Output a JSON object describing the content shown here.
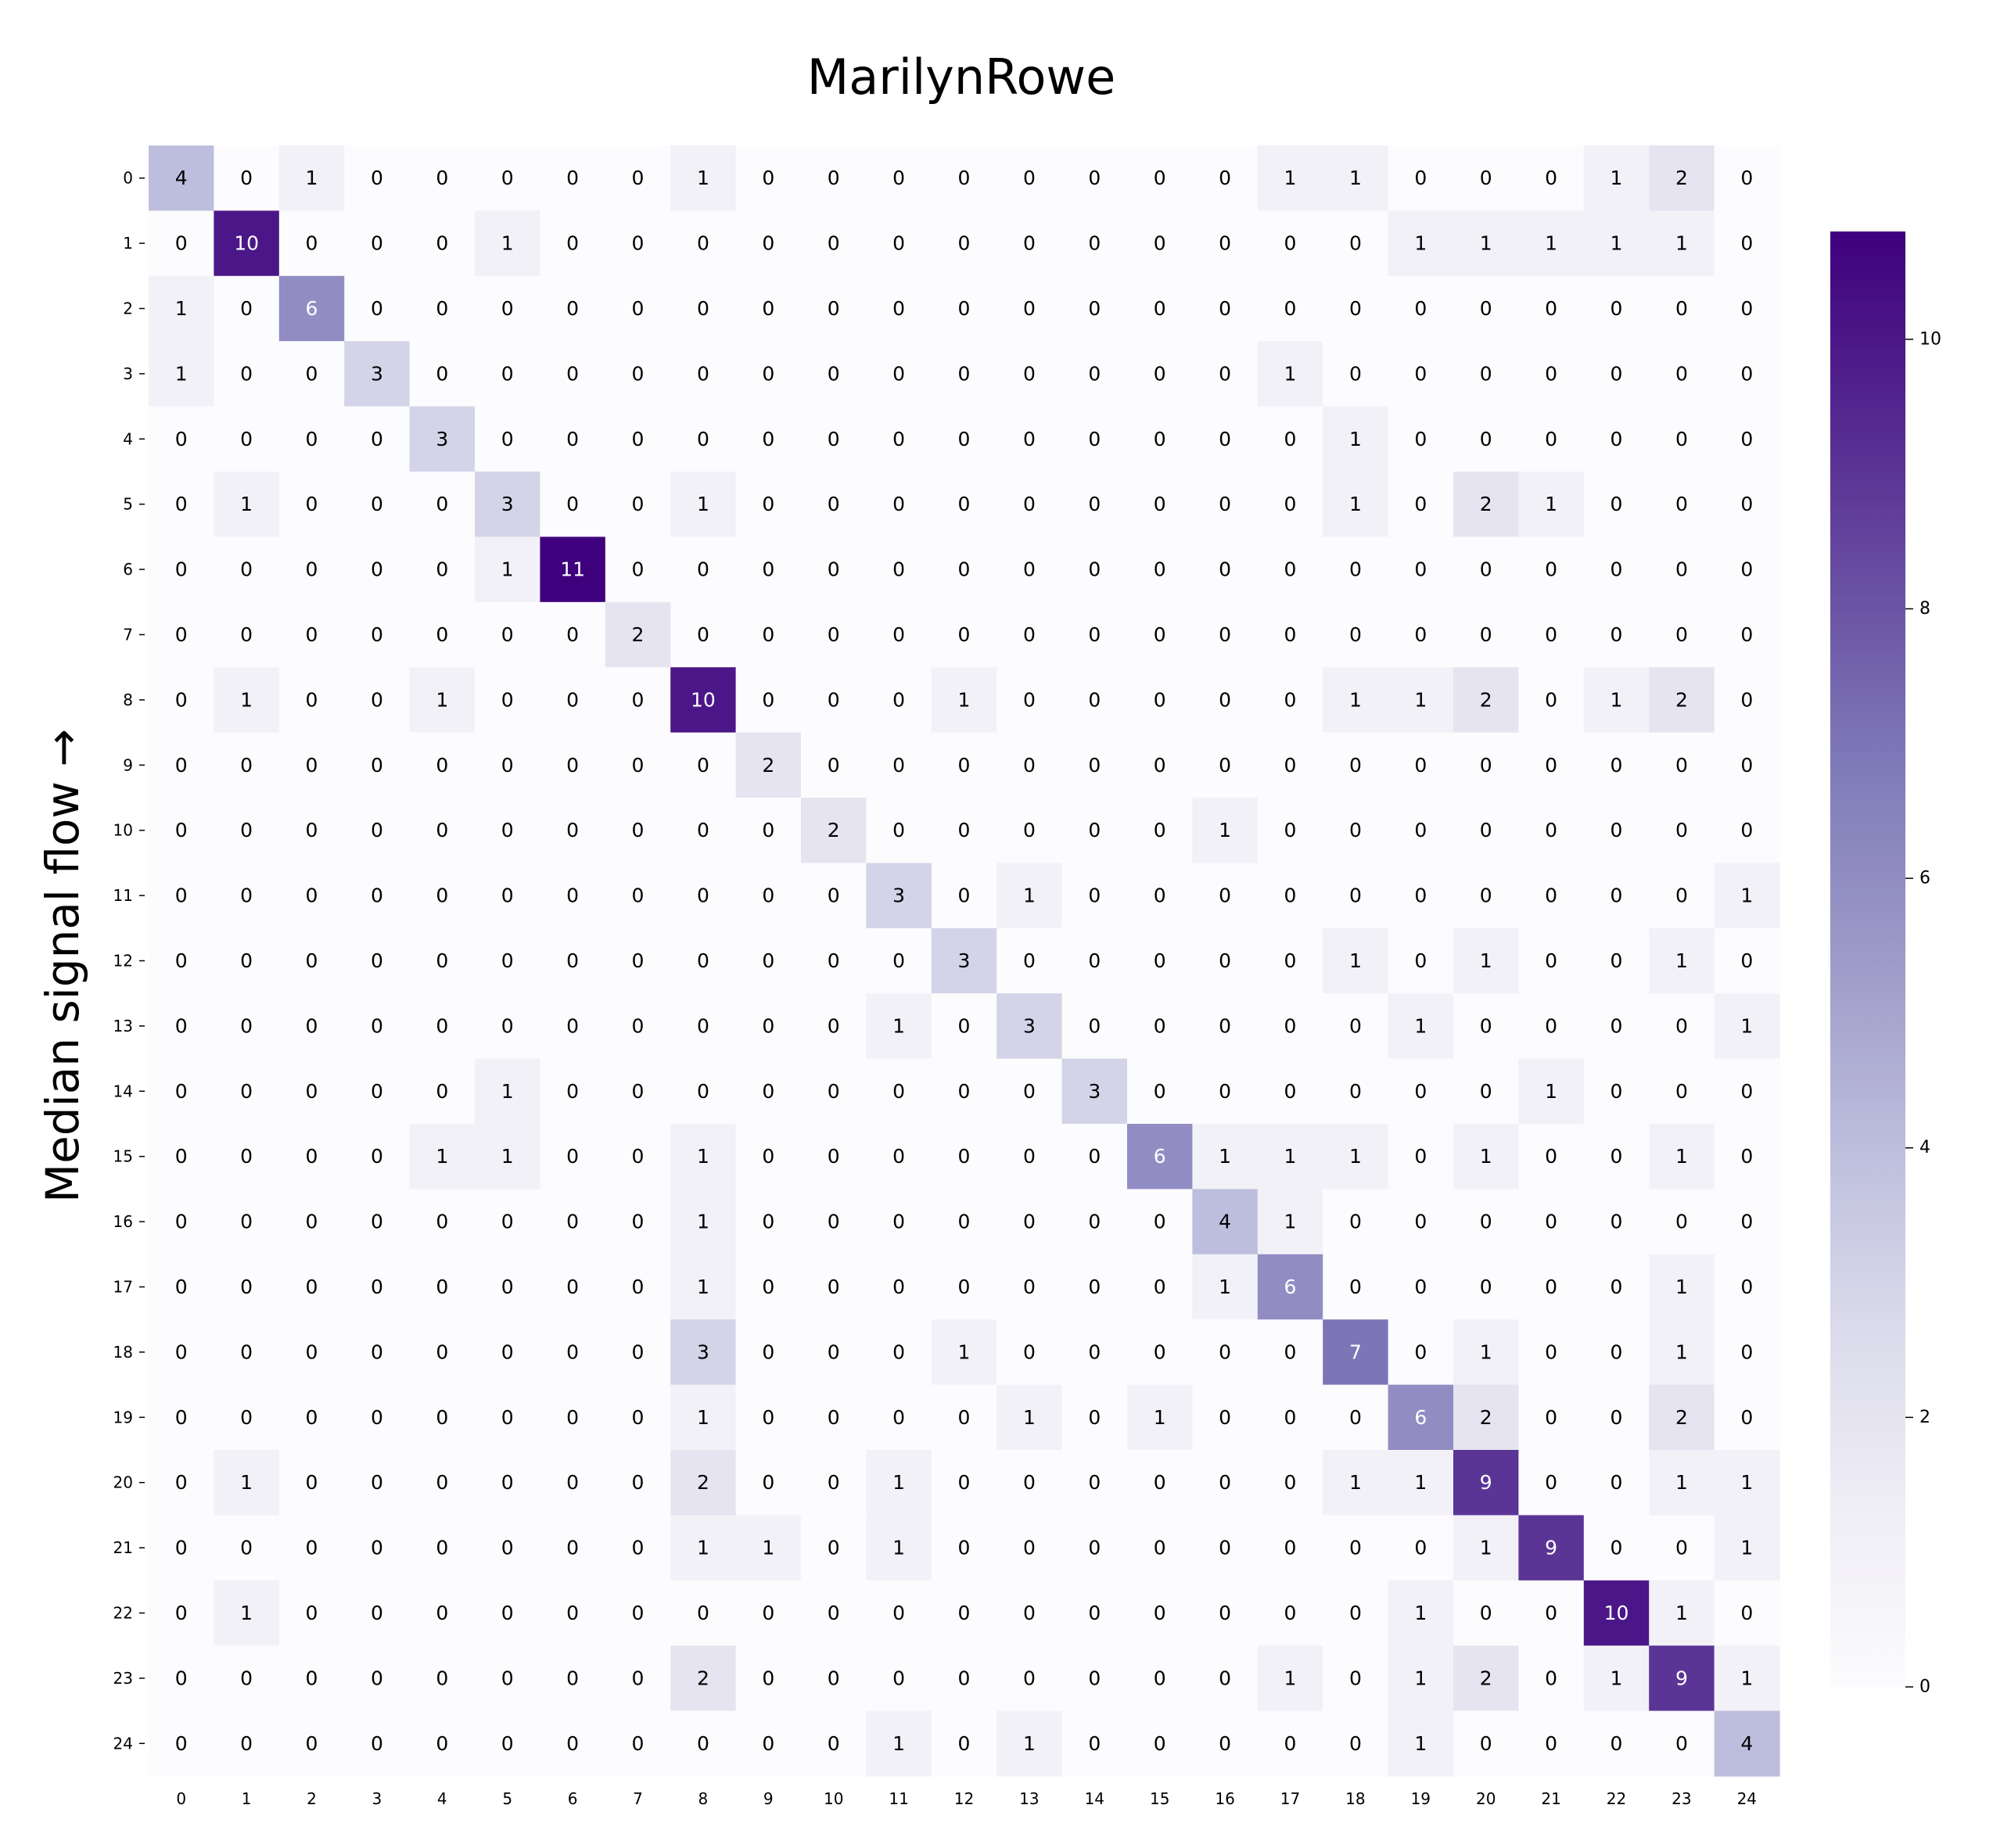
{
  "chart_data": {
    "type": "heatmap",
    "title": "MarilynRowe",
    "ylabel": "Median signal flow →",
    "xlabel": "",
    "x_labels": [
      "0",
      "1",
      "2",
      "3",
      "4",
      "5",
      "6",
      "7",
      "8",
      "9",
      "10",
      "11",
      "12",
      "13",
      "14",
      "15",
      "16",
      "17",
      "18",
      "19",
      "20",
      "21",
      "22",
      "23",
      "24"
    ],
    "y_labels": [
      "0",
      "1",
      "2",
      "3",
      "4",
      "5",
      "6",
      "7",
      "8",
      "9",
      "10",
      "11",
      "12",
      "13",
      "14",
      "15",
      "16",
      "17",
      "18",
      "19",
      "20",
      "21",
      "22",
      "23",
      "24"
    ],
    "values": [
      [
        4,
        0,
        1,
        0,
        0,
        0,
        0,
        0,
        1,
        0,
        0,
        0,
        0,
        0,
        0,
        0,
        0,
        1,
        1,
        0,
        0,
        0,
        1,
        2,
        0
      ],
      [
        0,
        10,
        0,
        0,
        0,
        1,
        0,
        0,
        0,
        0,
        0,
        0,
        0,
        0,
        0,
        0,
        0,
        0,
        0,
        1,
        1,
        1,
        1,
        1,
        0
      ],
      [
        1,
        0,
        6,
        0,
        0,
        0,
        0,
        0,
        0,
        0,
        0,
        0,
        0,
        0,
        0,
        0,
        0,
        0,
        0,
        0,
        0,
        0,
        0,
        0,
        0
      ],
      [
        1,
        0,
        0,
        3,
        0,
        0,
        0,
        0,
        0,
        0,
        0,
        0,
        0,
        0,
        0,
        0,
        0,
        1,
        0,
        0,
        0,
        0,
        0,
        0,
        0
      ],
      [
        0,
        0,
        0,
        0,
        3,
        0,
        0,
        0,
        0,
        0,
        0,
        0,
        0,
        0,
        0,
        0,
        0,
        0,
        1,
        0,
        0,
        0,
        0,
        0,
        0
      ],
      [
        0,
        1,
        0,
        0,
        0,
        3,
        0,
        0,
        1,
        0,
        0,
        0,
        0,
        0,
        0,
        0,
        0,
        0,
        1,
        0,
        2,
        1,
        0,
        0,
        0
      ],
      [
        0,
        0,
        0,
        0,
        0,
        1,
        11,
        0,
        0,
        0,
        0,
        0,
        0,
        0,
        0,
        0,
        0,
        0,
        0,
        0,
        0,
        0,
        0,
        0,
        0
      ],
      [
        0,
        0,
        0,
        0,
        0,
        0,
        0,
        2,
        0,
        0,
        0,
        0,
        0,
        0,
        0,
        0,
        0,
        0,
        0,
        0,
        0,
        0,
        0,
        0,
        0
      ],
      [
        0,
        1,
        0,
        0,
        1,
        0,
        0,
        0,
        10,
        0,
        0,
        0,
        1,
        0,
        0,
        0,
        0,
        0,
        1,
        1,
        2,
        0,
        1,
        2,
        0
      ],
      [
        0,
        0,
        0,
        0,
        0,
        0,
        0,
        0,
        0,
        2,
        0,
        0,
        0,
        0,
        0,
        0,
        0,
        0,
        0,
        0,
        0,
        0,
        0,
        0,
        0
      ],
      [
        0,
        0,
        0,
        0,
        0,
        0,
        0,
        0,
        0,
        0,
        2,
        0,
        0,
        0,
        0,
        0,
        1,
        0,
        0,
        0,
        0,
        0,
        0,
        0,
        0
      ],
      [
        0,
        0,
        0,
        0,
        0,
        0,
        0,
        0,
        0,
        0,
        0,
        3,
        0,
        1,
        0,
        0,
        0,
        0,
        0,
        0,
        0,
        0,
        0,
        0,
        1
      ],
      [
        0,
        0,
        0,
        0,
        0,
        0,
        0,
        0,
        0,
        0,
        0,
        0,
        3,
        0,
        0,
        0,
        0,
        0,
        1,
        0,
        1,
        0,
        0,
        1,
        0
      ],
      [
        0,
        0,
        0,
        0,
        0,
        0,
        0,
        0,
        0,
        0,
        0,
        1,
        0,
        3,
        0,
        0,
        0,
        0,
        0,
        1,
        0,
        0,
        0,
        0,
        1
      ],
      [
        0,
        0,
        0,
        0,
        0,
        1,
        0,
        0,
        0,
        0,
        0,
        0,
        0,
        0,
        3,
        0,
        0,
        0,
        0,
        0,
        0,
        1,
        0,
        0,
        0
      ],
      [
        0,
        0,
        0,
        0,
        1,
        1,
        0,
        0,
        1,
        0,
        0,
        0,
        0,
        0,
        0,
        6,
        1,
        1,
        1,
        0,
        1,
        0,
        0,
        1,
        0
      ],
      [
        0,
        0,
        0,
        0,
        0,
        0,
        0,
        0,
        1,
        0,
        0,
        0,
        0,
        0,
        0,
        0,
        4,
        1,
        0,
        0,
        0,
        0,
        0,
        0,
        0
      ],
      [
        0,
        0,
        0,
        0,
        0,
        0,
        0,
        0,
        1,
        0,
        0,
        0,
        0,
        0,
        0,
        0,
        1,
        6,
        0,
        0,
        0,
        0,
        0,
        1,
        0
      ],
      [
        0,
        0,
        0,
        0,
        0,
        0,
        0,
        0,
        3,
        0,
        0,
        0,
        1,
        0,
        0,
        0,
        0,
        0,
        7,
        0,
        1,
        0,
        0,
        1,
        0
      ],
      [
        0,
        0,
        0,
        0,
        0,
        0,
        0,
        0,
        1,
        0,
        0,
        0,
        0,
        1,
        0,
        1,
        0,
        0,
        0,
        6,
        2,
        0,
        0,
        2,
        0
      ],
      [
        0,
        1,
        0,
        0,
        0,
        0,
        0,
        0,
        2,
        0,
        0,
        1,
        0,
        0,
        0,
        0,
        0,
        0,
        1,
        1,
        9,
        0,
        0,
        1,
        1
      ],
      [
        0,
        0,
        0,
        0,
        0,
        0,
        0,
        0,
        1,
        1,
        0,
        1,
        0,
        0,
        0,
        0,
        0,
        0,
        0,
        0,
        1,
        9,
        0,
        0,
        1
      ],
      [
        0,
        1,
        0,
        0,
        0,
        0,
        0,
        0,
        0,
        0,
        0,
        0,
        0,
        0,
        0,
        0,
        0,
        0,
        0,
        1,
        0,
        0,
        10,
        1,
        0
      ],
      [
        0,
        0,
        0,
        0,
        0,
        0,
        0,
        0,
        2,
        0,
        0,
        0,
        0,
        0,
        0,
        0,
        0,
        1,
        0,
        1,
        2,
        0,
        1,
        9,
        1
      ],
      [
        0,
        0,
        0,
        0,
        0,
        0,
        0,
        0,
        0,
        0,
        0,
        1,
        0,
        1,
        0,
        0,
        0,
        0,
        0,
        1,
        0,
        0,
        0,
        0,
        4
      ]
    ],
    "colormap": "Purples",
    "color_range": [
      0,
      10.8
    ],
    "colorbar_ticks": [
      0,
      2,
      4,
      6,
      8,
      10
    ],
    "annotations": true,
    "grid": false
  },
  "colors": {
    "cmap_low": "#fcfbfd",
    "cmap_high": "#3f007d",
    "text_dark": "#000000",
    "text_light": "#ffffff"
  }
}
